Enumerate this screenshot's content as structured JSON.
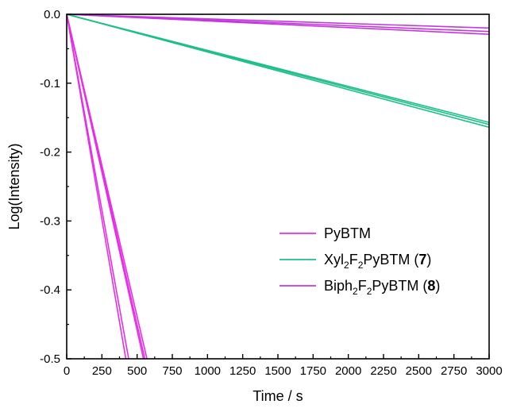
{
  "chart_data": {
    "type": "line",
    "xlabel": "Time / s",
    "ylabel": "Log(Intensity)",
    "xlim": [
      0,
      3000
    ],
    "ylim": [
      -0.5,
      0.0
    ],
    "x_ticks": [
      0,
      250,
      500,
      750,
      1000,
      1250,
      1500,
      1750,
      2000,
      2250,
      2500,
      2750,
      3000
    ],
    "x_tick_labels": [
      "0",
      "250",
      "500",
      "750",
      "1000",
      "1250",
      "1500",
      "1750",
      "2000",
      "2250",
      "2500",
      "2750",
      "3000"
    ],
    "y_ticks": [
      0.0,
      -0.1,
      -0.2,
      -0.3,
      -0.4,
      -0.5
    ],
    "y_tick_labels": [
      "0.0",
      "-0.1",
      "-0.2",
      "-0.3",
      "-0.4",
      "-0.5"
    ],
    "grid": false,
    "legend_position": "center-right",
    "legend": [
      {
        "base": "PyBTM",
        "sub1": "",
        "mid": "",
        "sub2": "",
        "tail": "",
        "bold": "",
        "close": "",
        "color": "#e62ee6"
      },
      {
        "base": "Xyl",
        "sub1": "2",
        "mid": "F",
        "sub2": "2",
        "tail": "PyBTM (",
        "bold": "7",
        "close": ")",
        "color": "#1fbf8a"
      },
      {
        "base": "Biph",
        "sub1": "2",
        "mid": "F",
        "sub2": "2",
        "tail": "PyBTM (",
        "bold": "8",
        "close": ")",
        "color": "#c437e0"
      }
    ],
    "series": [
      {
        "group": "PyBTM",
        "color": "#e62ee6",
        "x": [
          0,
          420
        ],
        "y": [
          0.0,
          -0.5
        ]
      },
      {
        "group": "PyBTM",
        "color": "#e62ee6",
        "x": [
          0,
          440
        ],
        "y": [
          0.0,
          -0.5
        ]
      },
      {
        "group": "PyBTM",
        "color": "#e62ee6",
        "x": [
          0,
          545
        ],
        "y": [
          0.0,
          -0.5
        ]
      },
      {
        "group": "PyBTM",
        "color": "#e62ee6",
        "x": [
          0,
          555
        ],
        "y": [
          0.0,
          -0.5
        ]
      },
      {
        "group": "PyBTM",
        "color": "#e62ee6",
        "x": [
          0,
          570
        ],
        "y": [
          0.0,
          -0.5
        ]
      },
      {
        "group": "Xyl2F2PyBTM (7)",
        "color": "#1fbf8a",
        "x": [
          0,
          3000
        ],
        "y": [
          0.0,
          -0.157
        ]
      },
      {
        "group": "Xyl2F2PyBTM (7)",
        "color": "#1fbf8a",
        "x": [
          0,
          3000
        ],
        "y": [
          0.0,
          -0.16
        ]
      },
      {
        "group": "Xyl2F2PyBTM (7)",
        "color": "#1fbf8a",
        "x": [
          0,
          3000
        ],
        "y": [
          0.0,
          -0.164
        ]
      },
      {
        "group": "Biph2F2PyBTM (8)",
        "color": "#c437e0",
        "x": [
          0,
          3000
        ],
        "y": [
          0.0,
          -0.02
        ]
      },
      {
        "group": "Biph2F2PyBTM (8)",
        "color": "#c437e0",
        "x": [
          0,
          3000
        ],
        "y": [
          0.0,
          -0.025
        ]
      },
      {
        "group": "Biph2F2PyBTM (8)",
        "color": "#c437e0",
        "x": [
          0,
          3000
        ],
        "y": [
          0.0,
          -0.029
        ]
      }
    ]
  }
}
